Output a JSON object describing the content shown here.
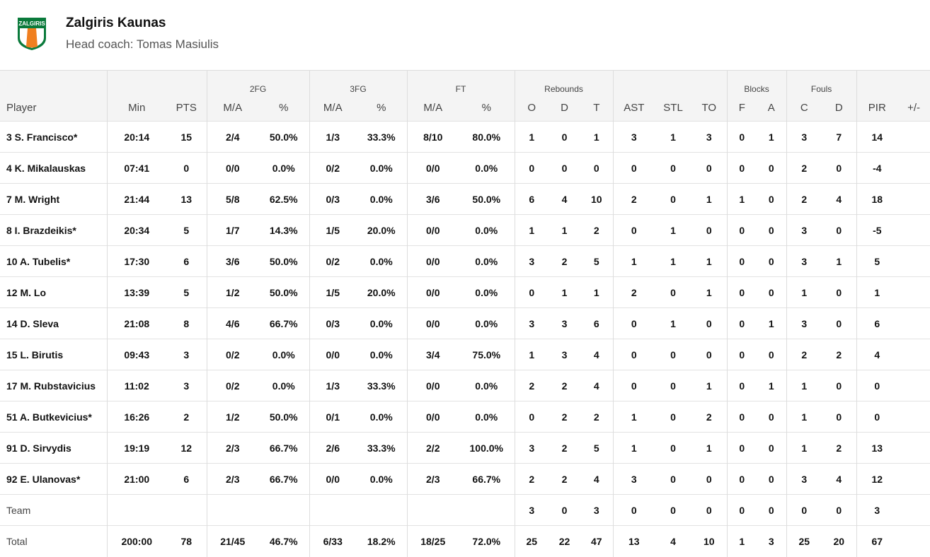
{
  "team": {
    "name": "Zalgiris Kaunas",
    "coach": "Head coach: Tomas Masiulis",
    "logo_text": "ZALGIRIS",
    "colors": {
      "green": "#0a7a3b",
      "orange": "#f07f1f"
    }
  },
  "groups": {
    "fg2": "2FG",
    "fg3": "3FG",
    "ft": "FT",
    "reb": "Rebounds",
    "blk": "Blocks",
    "fouls": "Fouls"
  },
  "columns": [
    "Player",
    "Min",
    "PTS",
    "M/A",
    "%",
    "M/A",
    "%",
    "M/A",
    "%",
    "O",
    "D",
    "T",
    "AST",
    "STL",
    "TO",
    "F",
    "A",
    "C",
    "D",
    "PIR",
    "+/-"
  ],
  "rows": [
    [
      "3 S. Francisco*",
      "20:14",
      "15",
      "2/4",
      "50.0%",
      "1/3",
      "33.3%",
      "8/10",
      "80.0%",
      "1",
      "0",
      "1",
      "3",
      "1",
      "3",
      "0",
      "1",
      "3",
      "7",
      "14",
      ""
    ],
    [
      "4 K. Mikalauskas",
      "07:41",
      "0",
      "0/0",
      "0.0%",
      "0/2",
      "0.0%",
      "0/0",
      "0.0%",
      "0",
      "0",
      "0",
      "0",
      "0",
      "0",
      "0",
      "0",
      "2",
      "0",
      "-4",
      ""
    ],
    [
      "7 M. Wright",
      "21:44",
      "13",
      "5/8",
      "62.5%",
      "0/3",
      "0.0%",
      "3/6",
      "50.0%",
      "6",
      "4",
      "10",
      "2",
      "0",
      "1",
      "1",
      "0",
      "2",
      "4",
      "18",
      ""
    ],
    [
      "8 I. Brazdeikis*",
      "20:34",
      "5",
      "1/7",
      "14.3%",
      "1/5",
      "20.0%",
      "0/0",
      "0.0%",
      "1",
      "1",
      "2",
      "0",
      "1",
      "0",
      "0",
      "0",
      "3",
      "0",
      "-5",
      ""
    ],
    [
      "10 A. Tubelis*",
      "17:30",
      "6",
      "3/6",
      "50.0%",
      "0/2",
      "0.0%",
      "0/0",
      "0.0%",
      "3",
      "2",
      "5",
      "1",
      "1",
      "1",
      "0",
      "0",
      "3",
      "1",
      "5",
      ""
    ],
    [
      "12 M. Lo",
      "13:39",
      "5",
      "1/2",
      "50.0%",
      "1/5",
      "20.0%",
      "0/0",
      "0.0%",
      "0",
      "1",
      "1",
      "2",
      "0",
      "1",
      "0",
      "0",
      "1",
      "0",
      "1",
      ""
    ],
    [
      "14 D. Sleva",
      "21:08",
      "8",
      "4/6",
      "66.7%",
      "0/3",
      "0.0%",
      "0/0",
      "0.0%",
      "3",
      "3",
      "6",
      "0",
      "1",
      "0",
      "0",
      "1",
      "3",
      "0",
      "6",
      ""
    ],
    [
      "15 L. Birutis",
      "09:43",
      "3",
      "0/2",
      "0.0%",
      "0/0",
      "0.0%",
      "3/4",
      "75.0%",
      "1",
      "3",
      "4",
      "0",
      "0",
      "0",
      "0",
      "0",
      "2",
      "2",
      "4",
      ""
    ],
    [
      "17 M. Rubstavicius",
      "11:02",
      "3",
      "0/2",
      "0.0%",
      "1/3",
      "33.3%",
      "0/0",
      "0.0%",
      "2",
      "2",
      "4",
      "0",
      "0",
      "1",
      "0",
      "1",
      "1",
      "0",
      "0",
      ""
    ],
    [
      "51 A. Butkevicius*",
      "16:26",
      "2",
      "1/2",
      "50.0%",
      "0/1",
      "0.0%",
      "0/0",
      "0.0%",
      "0",
      "2",
      "2",
      "1",
      "0",
      "2",
      "0",
      "0",
      "1",
      "0",
      "0",
      ""
    ],
    [
      "91 D. Sirvydis",
      "19:19",
      "12",
      "2/3",
      "66.7%",
      "2/6",
      "33.3%",
      "2/2",
      "100.0%",
      "3",
      "2",
      "5",
      "1",
      "0",
      "1",
      "0",
      "0",
      "1",
      "2",
      "13",
      ""
    ],
    [
      "92 E. Ulanovas*",
      "21:00",
      "6",
      "2/3",
      "66.7%",
      "0/0",
      "0.0%",
      "2/3",
      "66.7%",
      "2",
      "2",
      "4",
      "3",
      "0",
      "0",
      "0",
      "0",
      "3",
      "4",
      "12",
      ""
    ],
    [
      "Team",
      "",
      "",
      "",
      "",
      "",
      "",
      "",
      "",
      "3",
      "0",
      "3",
      "0",
      "0",
      "0",
      "0",
      "0",
      "0",
      "0",
      "3",
      ""
    ],
    [
      "Total",
      "200:00",
      "78",
      "21/45",
      "46.7%",
      "6/33",
      "18.2%",
      "18/25",
      "72.0%",
      "25",
      "22",
      "47",
      "13",
      "4",
      "10",
      "1",
      "3",
      "25",
      "20",
      "67",
      ""
    ]
  ]
}
